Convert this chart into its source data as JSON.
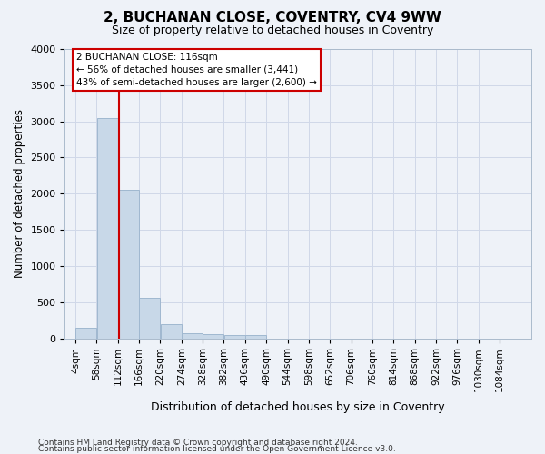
{
  "title": "2, BUCHANAN CLOSE, COVENTRY, CV4 9WW",
  "subtitle": "Size of property relative to detached houses in Coventry",
  "xlabel": "Distribution of detached houses by size in Coventry",
  "ylabel": "Number of detached properties",
  "footer_line1": "Contains HM Land Registry data © Crown copyright and database right 2024.",
  "footer_line2": "Contains public sector information licensed under the Open Government Licence v3.0.",
  "bin_labels": [
    "4sqm",
    "58sqm",
    "112sqm",
    "166sqm",
    "220sqm",
    "274sqm",
    "328sqm",
    "382sqm",
    "436sqm",
    "490sqm",
    "544sqm",
    "598sqm",
    "652sqm",
    "706sqm",
    "760sqm",
    "814sqm",
    "868sqm",
    "922sqm",
    "976sqm",
    "1030sqm",
    "1084sqm"
  ],
  "bin_edges": [
    4,
    58,
    112,
    166,
    220,
    274,
    328,
    382,
    436,
    490,
    544,
    598,
    652,
    706,
    760,
    814,
    868,
    922,
    976,
    1030,
    1084
  ],
  "bar_values": [
    140,
    3050,
    2050,
    560,
    195,
    75,
    60,
    50,
    50,
    0,
    0,
    0,
    0,
    0,
    0,
    0,
    0,
    0,
    0,
    0
  ],
  "bar_color": "#c8d8e8",
  "bar_edge_color": "#a0b8d0",
  "grid_color": "#d0d8e8",
  "background_color": "#eef2f8",
  "property_line_x": 116,
  "property_line_color": "#cc0000",
  "annotation_text": "2 BUCHANAN CLOSE: 116sqm\n← 56% of detached houses are smaller (3,441)\n43% of semi-detached houses are larger (2,600) →",
  "annotation_box_color": "#ffffff",
  "annotation_box_edge": "#cc0000",
  "ylim": [
    0,
    4000
  ],
  "yticks": [
    0,
    500,
    1000,
    1500,
    2000,
    2500,
    3000,
    3500,
    4000
  ]
}
